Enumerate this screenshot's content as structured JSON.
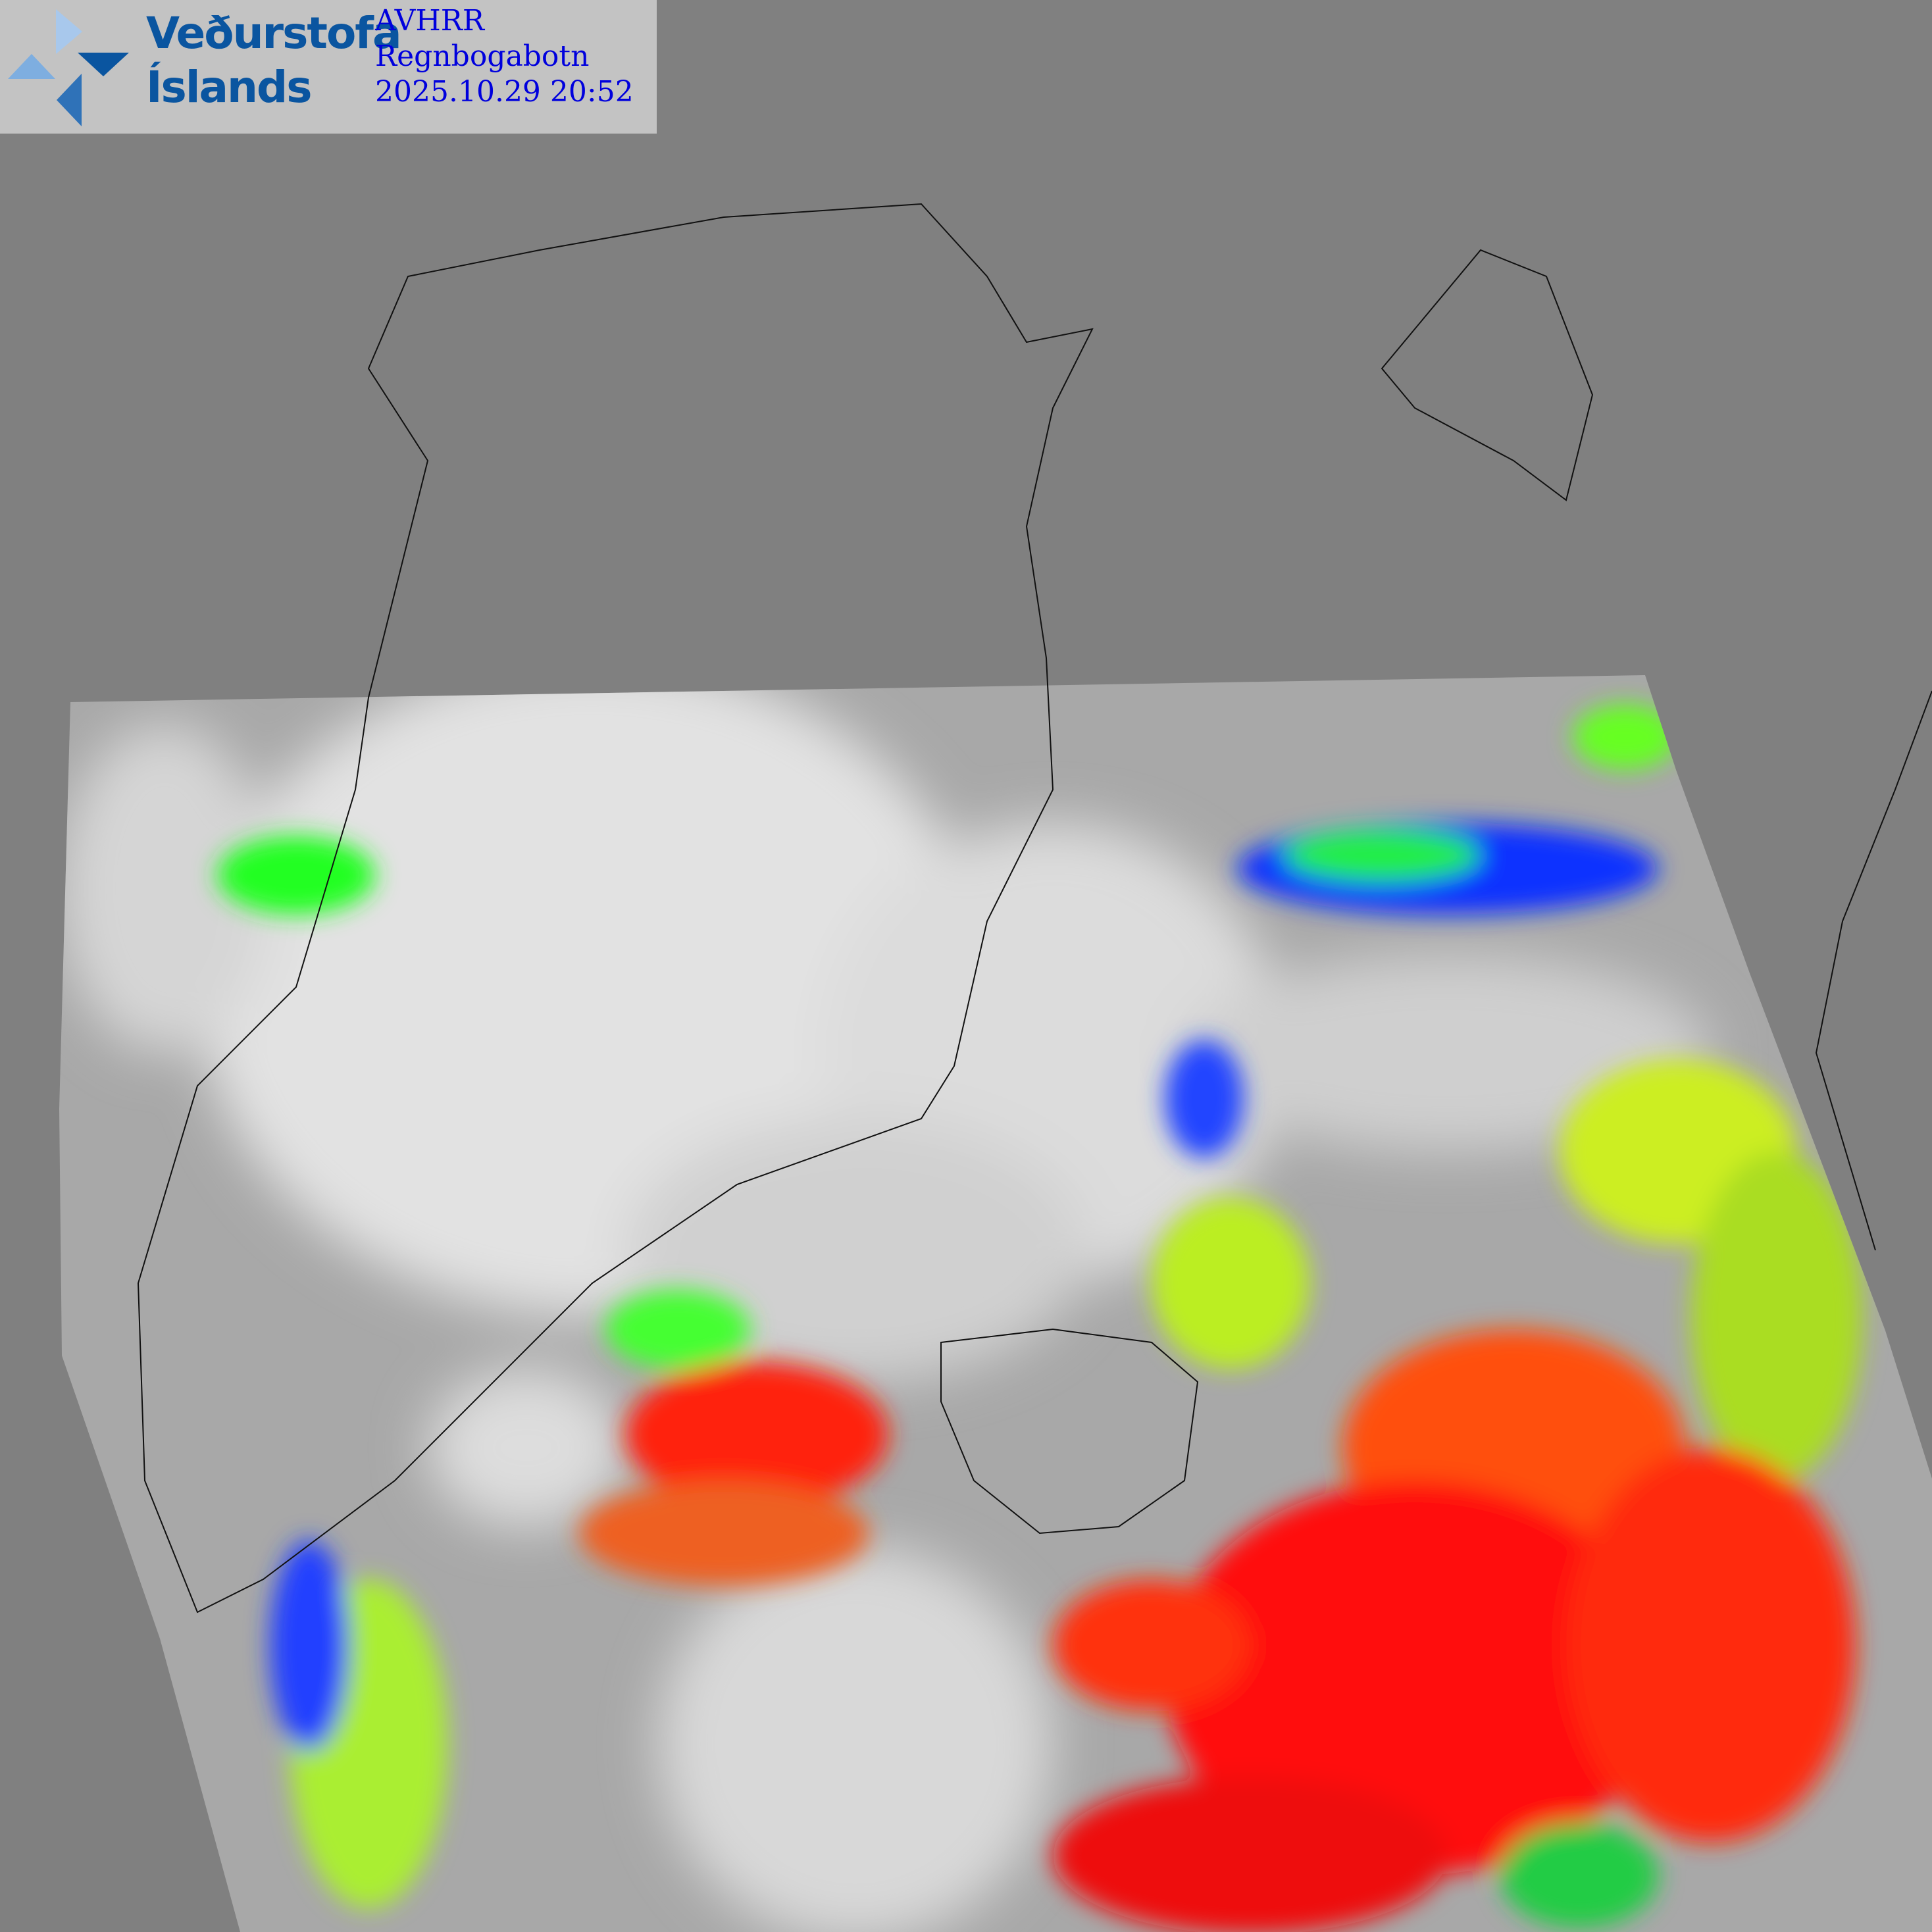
{
  "logo": {
    "line1": "Veðurstofa",
    "line2": "Íslands"
  },
  "product": {
    "sensor": "AVHRR",
    "name": "Regnbogabotn",
    "timestamp": "2025.10.29 20:52"
  },
  "colors": {
    "background": "#808080",
    "logo_blue": "#0a55a0",
    "text_blue": "#0000dd",
    "cloud_white": "#e6e6e6",
    "palette": [
      "#0000ff",
      "#00ff00",
      "#ffff00",
      "#ff8000",
      "#ff0000"
    ]
  }
}
